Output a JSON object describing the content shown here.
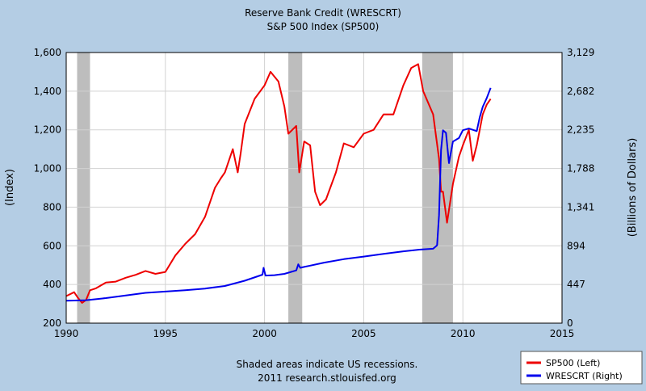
{
  "chart_data": {
    "type": "line",
    "title": "Reserve Bank Credit (WRESCRT)",
    "subtitle": "S&P 500 Index (SP500)",
    "ylabel_left": "(Index)",
    "ylabel_right": "(Billions of Dollars)",
    "xlim": [
      1990,
      2015
    ],
    "ylim_left": [
      200,
      1600
    ],
    "ylim_right": [
      0,
      3129
    ],
    "x_ticks": [
      "1990",
      "1995",
      "2000",
      "2005",
      "2010",
      "2015"
    ],
    "y_ticks_left": [
      "200",
      "400",
      "600",
      "800",
      "1,000",
      "1,200",
      "1,400",
      "1,600"
    ],
    "y_ticks_right": [
      "0",
      "447",
      "894",
      "1,341",
      "1,788",
      "2,235",
      "2,682",
      "3,129"
    ],
    "grid": true,
    "legend_position": "bottom-right",
    "note": "Shaded areas indicate US recessions.",
    "source": "2011 research.stlouisfed.org",
    "recessions": [
      [
        1990.55,
        1991.2
      ],
      [
        2001.2,
        2001.9
      ],
      [
        2007.95,
        2009.5
      ]
    ],
    "series": [
      {
        "name": "SP500 (Left)",
        "axis": "left",
        "color": "#ee0000",
        "points": [
          [
            1990.0,
            340
          ],
          [
            1990.4,
            360
          ],
          [
            1990.6,
            330
          ],
          [
            1990.8,
            305
          ],
          [
            1991.0,
            320
          ],
          [
            1991.2,
            370
          ],
          [
            1991.5,
            380
          ],
          [
            1992.0,
            410
          ],
          [
            1992.5,
            415
          ],
          [
            1993.0,
            435
          ],
          [
            1993.5,
            450
          ],
          [
            1994.0,
            470
          ],
          [
            1994.5,
            455
          ],
          [
            1995.0,
            465
          ],
          [
            1995.5,
            550
          ],
          [
            1996.0,
            610
          ],
          [
            1996.5,
            660
          ],
          [
            1997.0,
            750
          ],
          [
            1997.5,
            900
          ],
          [
            1997.8,
            950
          ],
          [
            1998.0,
            980
          ],
          [
            1998.4,
            1100
          ],
          [
            1998.65,
            980
          ],
          [
            1998.8,
            1080
          ],
          [
            1999.0,
            1230
          ],
          [
            1999.5,
            1360
          ],
          [
            2000.0,
            1430
          ],
          [
            2000.3,
            1500
          ],
          [
            2000.7,
            1450
          ],
          [
            2001.0,
            1320
          ],
          [
            2001.2,
            1180
          ],
          [
            2001.6,
            1220
          ],
          [
            2001.75,
            980
          ],
          [
            2002.0,
            1140
          ],
          [
            2002.3,
            1120
          ],
          [
            2002.55,
            880
          ],
          [
            2002.8,
            810
          ],
          [
            2003.1,
            840
          ],
          [
            2003.6,
            980
          ],
          [
            2004.0,
            1130
          ],
          [
            2004.5,
            1110
          ],
          [
            2005.0,
            1180
          ],
          [
            2005.5,
            1200
          ],
          [
            2006.0,
            1280
          ],
          [
            2006.5,
            1280
          ],
          [
            2007.0,
            1430
          ],
          [
            2007.4,
            1520
          ],
          [
            2007.75,
            1540
          ],
          [
            2008.0,
            1400
          ],
          [
            2008.5,
            1280
          ],
          [
            2008.8,
            1050
          ],
          [
            2008.9,
            880
          ],
          [
            2009.0,
            880
          ],
          [
            2009.2,
            720
          ],
          [
            2009.5,
            920
          ],
          [
            2009.8,
            1060
          ],
          [
            2010.0,
            1120
          ],
          [
            2010.3,
            1200
          ],
          [
            2010.5,
            1040
          ],
          [
            2010.7,
            1120
          ],
          [
            2011.0,
            1280
          ],
          [
            2011.2,
            1330
          ],
          [
            2011.4,
            1360
          ]
        ]
      },
      {
        "name": "WRESCRT (Right)",
        "axis": "right",
        "color": "#0000ee",
        "points": [
          [
            1990.0,
            260
          ],
          [
            1991.0,
            265
          ],
          [
            1992.0,
            290
          ],
          [
            1993.0,
            320
          ],
          [
            1994.0,
            350
          ],
          [
            1995.0,
            365
          ],
          [
            1996.0,
            380
          ],
          [
            1997.0,
            400
          ],
          [
            1998.0,
            430
          ],
          [
            1999.0,
            490
          ],
          [
            1999.9,
            560
          ],
          [
            1999.95,
            640
          ],
          [
            2000.05,
            550
          ],
          [
            2000.5,
            555
          ],
          [
            2001.0,
            570
          ],
          [
            2001.6,
            610
          ],
          [
            2001.7,
            680
          ],
          [
            2001.8,
            640
          ],
          [
            2002.0,
            650
          ],
          [
            2003.0,
            700
          ],
          [
            2004.0,
            740
          ],
          [
            2005.0,
            770
          ],
          [
            2006.0,
            800
          ],
          [
            2007.0,
            830
          ],
          [
            2007.8,
            850
          ],
          [
            2008.5,
            860
          ],
          [
            2008.7,
            900
          ],
          [
            2008.8,
            1250
          ],
          [
            2008.9,
            2000
          ],
          [
            2009.0,
            2230
          ],
          [
            2009.15,
            2200
          ],
          [
            2009.3,
            1850
          ],
          [
            2009.5,
            2100
          ],
          [
            2009.8,
            2140
          ],
          [
            2010.0,
            2230
          ],
          [
            2010.3,
            2250
          ],
          [
            2010.7,
            2220
          ],
          [
            2010.85,
            2380
          ],
          [
            2011.0,
            2500
          ],
          [
            2011.2,
            2600
          ],
          [
            2011.4,
            2720
          ]
        ]
      }
    ]
  }
}
